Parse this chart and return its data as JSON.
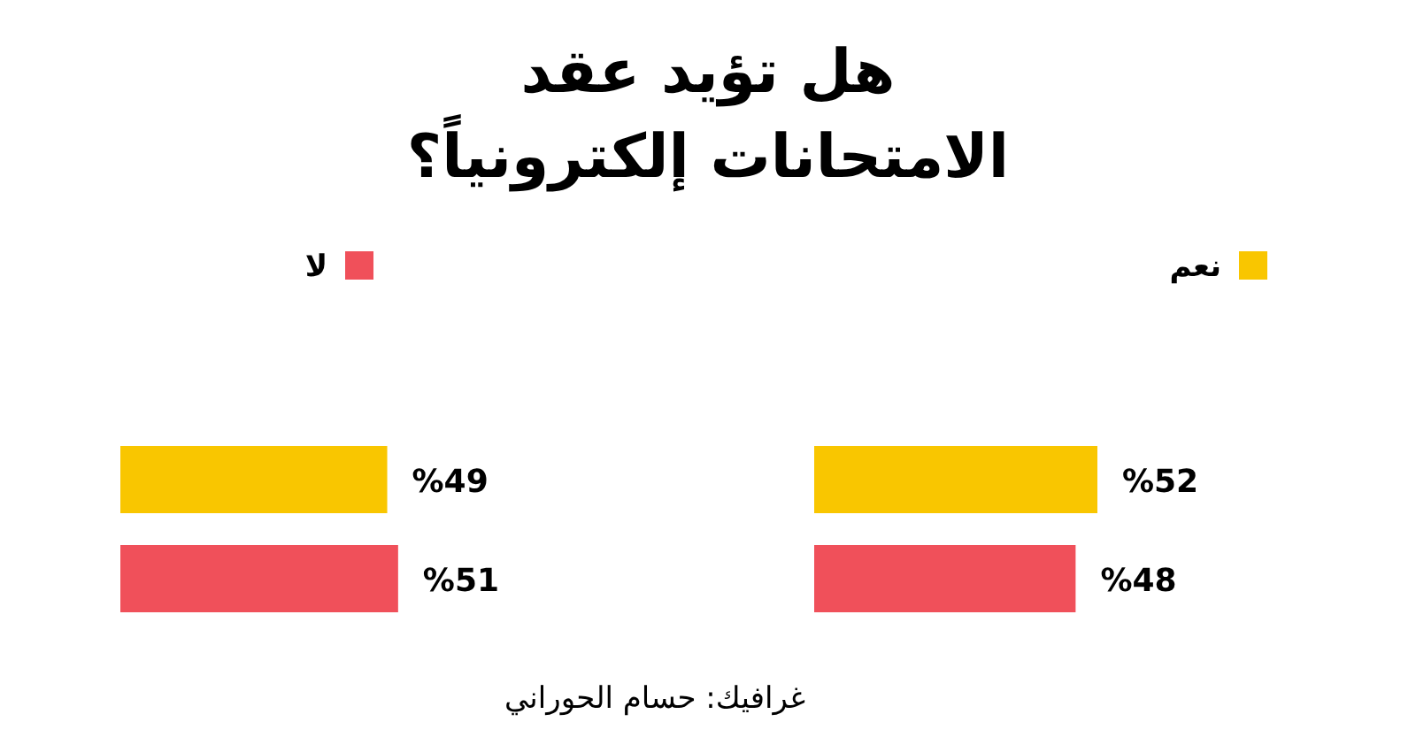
{
  "chart_data": [
    {
      "type": "bar",
      "orientation": "horizontal",
      "title": "هل تؤيد عقد الامتحانات إلكترونياً؟",
      "categories": [
        null
      ],
      "legend": "top",
      "annotations": [
        "غرافيك: حسام الحوراني"
      ],
      "series": [
        {
          "name": "نعم",
          "color": "#f9c600",
          "values": [
            52
          ],
          "value_labels": [
            "%52"
          ]
        },
        {
          "name": "لا",
          "color": "#f0505a",
          "values": [
            48
          ],
          "value_labels": [
            "%48"
          ]
        }
      ]
    },
    {
      "type": "bar",
      "orientation": "horizontal",
      "categories": [
        null
      ],
      "series": [
        {
          "color": "#f9c600",
          "values": [
            49
          ],
          "value_labels": [
            "%49"
          ]
        },
        {
          "color": "#f0505a",
          "values": [
            51
          ],
          "value_labels": [
            "%51"
          ]
        }
      ]
    }
  ]
}
